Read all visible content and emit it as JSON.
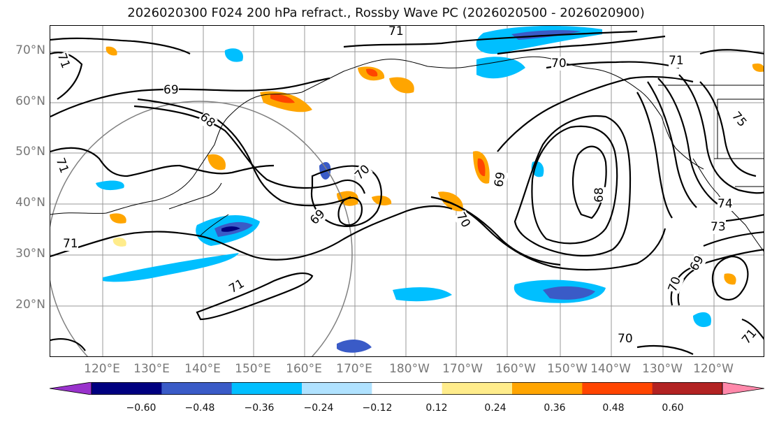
{
  "title": "2026020300 F024 200 hPa refract., Rossby Wave PC (2026020500 - 2026020900)",
  "lat_labels": [
    "70°N",
    "60°N",
    "50°N",
    "40°N",
    "30°N",
    "20°N"
  ],
  "lon_labels": [
    "120°E",
    "130°E",
    "140°E",
    "150°E",
    "160°E",
    "170°E",
    "180°W",
    "170°W",
    "160°W",
    "150°W",
    "140°W",
    "130°W",
    "120°W"
  ],
  "contour_labels": [
    "71",
    "70",
    "71",
    "69",
    "68",
    "71",
    "70",
    "69",
    "69",
    "70",
    "68",
    "71",
    "71",
    "74",
    "73",
    "75",
    "70",
    "69",
    "71",
    "70",
    "71"
  ],
  "colorbar": {
    "colors": [
      "#9932cc",
      "#000080",
      "#3a5bc7",
      "#00bfff",
      "#b0e2ff",
      "#ffffff",
      "#ffec8b",
      "#ffa500",
      "#ff4500",
      "#b22222",
      "#ff88aa"
    ],
    "ticks": [
      "−0.60",
      "−0.48",
      "−0.36",
      "−0.24",
      "−0.12",
      "0.12",
      "0.24",
      "0.36",
      "0.48",
      "0.60"
    ]
  },
  "colors": {
    "contour": "#000000",
    "grid": "#999999",
    "coast": "#000000",
    "circle": "#808080"
  }
}
